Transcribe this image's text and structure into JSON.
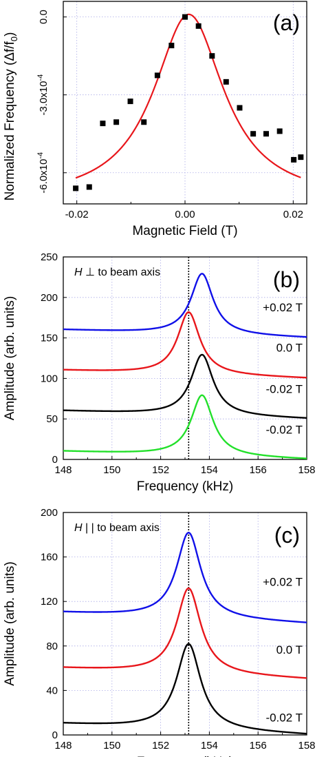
{
  "figure": {
    "panels": [
      "(a)",
      "(b)",
      "(c)"
    ]
  },
  "chart_data": [
    {
      "type": "scatter",
      "panel_label": "(a)",
      "xlabel": "Magnetic Field (T)",
      "ylabel": "Normalized Frequency (Δf/f0)",
      "xlim": [
        -0.0225,
        0.0225
      ],
      "ylim": [
        -0.00072,
        6e-05
      ],
      "x_ticks": [
        -0.02,
        0.0,
        0.02
      ],
      "x_tick_labels": [
        "-0.02",
        "0.00",
        "0.02"
      ],
      "y_ticks": [
        0.0,
        -0.0003,
        -0.0006
      ],
      "y_tick_labels": [
        "0.0",
        "-3.0x10-4",
        "-6.0x10-4"
      ],
      "grid": true,
      "series": [
        {
          "kind": "points",
          "color": "#000000",
          "x": [
            -0.0202,
            -0.0177,
            -0.0152,
            -0.0127,
            -0.0101,
            -0.0076,
            -0.0051,
            -0.0025,
            0.0,
            0.0025,
            0.005,
            0.0076,
            0.0101,
            0.0126,
            0.015,
            0.0175,
            0.0201,
            0.0214
          ],
          "y": [
            -0.00066,
            -0.000655,
            -0.00041,
            -0.000405,
            -0.000325,
            -0.000405,
            -0.000225,
            -0.00011,
            0.0,
            -3.5e-05,
            -0.00015,
            -0.00025,
            -0.00035,
            -0.00045,
            -0.00045,
            -0.00044,
            -0.00055,
            -0.00054
          ]
        },
        {
          "kind": "fit",
          "color": "#e8161b",
          "lorentzian": {
            "y0": -0.00071,
            "amplitude": 0.00072,
            "center": 0.0007,
            "hwhm": 0.0079
          },
          "x_range": [
            -0.0202,
            0.0214
          ]
        }
      ]
    },
    {
      "type": "line",
      "panel_label": "(b)",
      "annotation": "H ⊥ to beam axis",
      "xlabel": "Frequency (kHz)",
      "ylabel": "Amplitude (arb. units)",
      "xlim": [
        148,
        158
      ],
      "ylim": [
        0,
        250
      ],
      "x_ticks": [
        148,
        150,
        152,
        154,
        156,
        158
      ],
      "y_ticks": [
        0,
        50,
        100,
        150,
        200,
        250
      ],
      "grid": true,
      "marker_line_x": 153.15,
      "series": [
        {
          "name": "+0.02 T",
          "color": "#1010e8",
          "lorentzian": {
            "base": 160,
            "baseline_slope": -1.0,
            "peak_height": 75,
            "center": 153.7,
            "hwhm": 0.55
          }
        },
        {
          "name": "0.0 T",
          "color": "#e8161b",
          "lorentzian": {
            "base": 110,
            "baseline_slope": -1.0,
            "peak_height": 77,
            "center": 153.15,
            "hwhm": 0.55
          }
        },
        {
          "name": "-0.02 T",
          "color": "#000000",
          "lorentzian": {
            "base": 60,
            "baseline_slope": -1.0,
            "peak_height": 75,
            "center": 153.7,
            "hwhm": 0.55
          }
        },
        {
          "name": "-0.02 T",
          "color": "#22e02a",
          "lorentzian": {
            "base": 10,
            "baseline_slope": -1.0,
            "peak_height": 75,
            "center": 153.7,
            "hwhm": 0.55
          }
        }
      ]
    },
    {
      "type": "line",
      "panel_label": "(c)",
      "annotation": "H | | to beam axis",
      "xlabel": "Frequency (kHz)",
      "ylabel": "Amplitude (arb. units)",
      "xlim": [
        148,
        158
      ],
      "ylim": [
        0,
        200
      ],
      "x_ticks": [
        148,
        150,
        152,
        154,
        156,
        158
      ],
      "y_ticks": [
        0,
        40,
        80,
        120,
        160,
        200
      ],
      "grid": true,
      "marker_line_x": 153.15,
      "series": [
        {
          "name": "+0.02 T",
          "color": "#1010e8",
          "lorentzian": {
            "base": 110,
            "baseline_slope": -1.0,
            "peak_height": 77,
            "center": 153.15,
            "hwhm": 0.6
          }
        },
        {
          "name": "0.0 T",
          "color": "#e8161b",
          "lorentzian": {
            "base": 60,
            "baseline_slope": -1.0,
            "peak_height": 77,
            "center": 153.15,
            "hwhm": 0.6
          }
        },
        {
          "name": "-0.02 T",
          "color": "#000000",
          "lorentzian": {
            "base": 10,
            "baseline_slope": -1.0,
            "peak_height": 77,
            "center": 153.15,
            "hwhm": 0.6
          }
        }
      ]
    }
  ]
}
